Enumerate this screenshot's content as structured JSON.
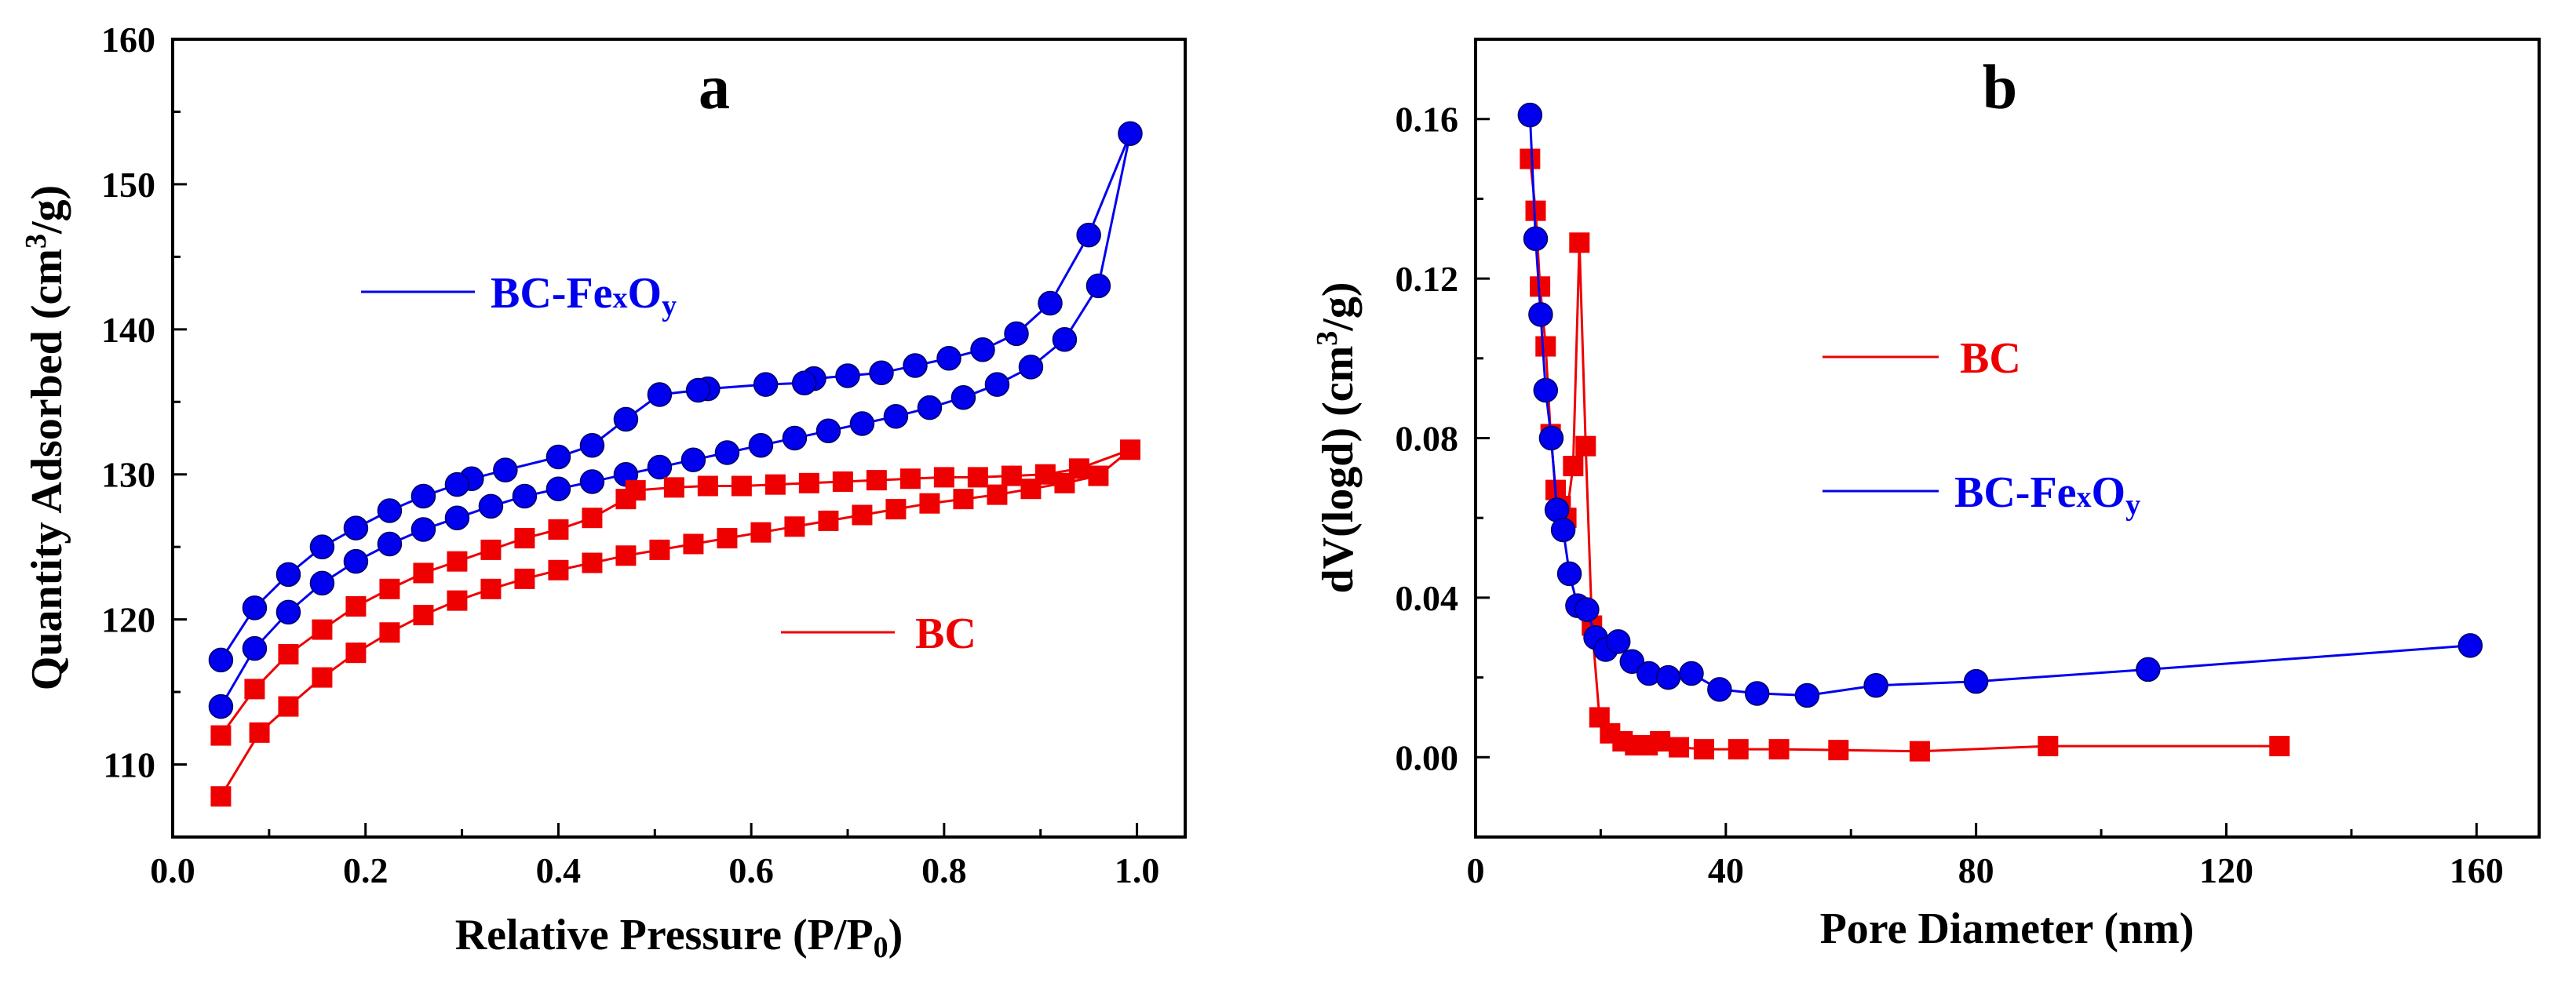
{
  "chart_data": [
    {
      "panel_label": "a",
      "type": "line",
      "title": "",
      "xlabel": "Relative Pressure (P/P",
      "xlabel_sub": "0",
      "xlabel_end": ")",
      "ylabel": "Quantity Adsorbed (cm",
      "ylabel_sup": "3",
      "ylabel_end": "/g)",
      "xlim": [
        0.0,
        1.05
      ],
      "ylim": [
        105,
        160
      ],
      "xticks": [
        0.0,
        0.2,
        0.4,
        0.6,
        0.8,
        1.0
      ],
      "xtick_labels": [
        "0.0",
        "0.2",
        "0.4",
        "0.6",
        "0.8",
        "1.0"
      ],
      "yticks": [
        110,
        120,
        130,
        140,
        150,
        160
      ],
      "ytick_labels": [
        "110",
        "120",
        "130",
        "140",
        "150",
        "160"
      ],
      "series": [
        {
          "name": "BC-FexOy",
          "legend_main": "BC-Fe",
          "legend_sub1": "x",
          "legend_mid": "O",
          "legend_sub2": "y",
          "color": "#0000ee",
          "marker": "circle",
          "x": [
            0.05,
            0.085,
            0.12,
            0.155,
            0.19,
            0.225,
            0.26,
            0.295,
            0.33,
            0.365,
            0.4,
            0.435,
            0.47,
            0.505,
            0.54,
            0.575,
            0.61,
            0.645,
            0.68,
            0.715,
            0.75,
            0.785,
            0.82,
            0.855,
            0.89,
            0.925,
            0.96,
            0.993,
            0.95,
            0.91,
            0.875,
            0.84,
            0.805,
            0.77,
            0.735,
            0.7,
            0.665,
            0.655,
            0.615,
            0.555,
            0.545,
            0.505,
            0.47,
            0.435,
            0.4,
            0.345,
            0.31,
            0.295,
            0.26,
            0.225,
            0.19,
            0.155,
            0.12,
            0.085,
            0.05
          ],
          "y": [
            114.0,
            118.0,
            120.5,
            122.5,
            124.0,
            125.2,
            126.2,
            127.0,
            127.8,
            128.5,
            129.0,
            129.5,
            130.0,
            130.5,
            131.0,
            131.5,
            132.0,
            132.5,
            133.0,
            133.5,
            134.0,
            134.6,
            135.3,
            136.2,
            137.4,
            139.3,
            143.0,
            153.5,
            146.5,
            141.8,
            139.7,
            138.6,
            138.0,
            137.5,
            137.0,
            136.8,
            136.6,
            136.3,
            136.2,
            135.9,
            135.8,
            135.5,
            133.8,
            132.0,
            131.2,
            130.3,
            129.7,
            129.3,
            128.5,
            127.5,
            126.3,
            125.0,
            123.1,
            120.8,
            117.2
          ]
        },
        {
          "name": "BC",
          "legend_main": "BC",
          "color": "#ee0000",
          "marker": "square",
          "x": [
            0.05,
            0.09,
            0.12,
            0.155,
            0.19,
            0.225,
            0.26,
            0.295,
            0.33,
            0.365,
            0.4,
            0.435,
            0.47,
            0.505,
            0.54,
            0.575,
            0.61,
            0.645,
            0.68,
            0.715,
            0.75,
            0.785,
            0.82,
            0.855,
            0.89,
            0.925,
            0.96,
            0.993,
            0.94,
            0.905,
            0.87,
            0.835,
            0.8,
            0.765,
            0.73,
            0.695,
            0.66,
            0.625,
            0.59,
            0.555,
            0.52,
            0.48,
            0.47,
            0.435,
            0.4,
            0.365,
            0.33,
            0.295,
            0.26,
            0.225,
            0.19,
            0.155,
            0.12,
            0.085,
            0.05
          ],
          "y": [
            107.8,
            112.2,
            114.0,
            116.0,
            117.7,
            119.1,
            120.3,
            121.3,
            122.1,
            122.8,
            123.4,
            123.9,
            124.4,
            124.8,
            125.2,
            125.6,
            126.0,
            126.4,
            126.8,
            127.2,
            127.6,
            128.0,
            128.3,
            128.6,
            129.0,
            129.4,
            129.9,
            131.7,
            130.4,
            130.0,
            129.9,
            129.8,
            129.8,
            129.7,
            129.6,
            129.5,
            129.4,
            129.3,
            129.2,
            129.2,
            129.1,
            128.9,
            128.3,
            127.0,
            126.2,
            125.6,
            124.8,
            124.0,
            123.2,
            122.1,
            120.9,
            119.3,
            117.6,
            115.2,
            112.0
          ]
        }
      ]
    },
    {
      "panel_label": "b",
      "type": "line",
      "title": "",
      "xlabel": "Pore Diameter (nm)",
      "ylabel": "dV(logd) (cm",
      "ylabel_sup": "3",
      "ylabel_end": "/g)",
      "xlim": [
        0,
        170
      ],
      "ylim": [
        -0.02,
        0.18
      ],
      "xticks": [
        0,
        40,
        80,
        120,
        160
      ],
      "xtick_labels": [
        "0",
        "40",
        "80",
        "120",
        "160"
      ],
      "yticks": [
        0.0,
        0.04,
        0.08,
        0.12,
        0.16
      ],
      "ytick_labels": [
        "0.00",
        "0.04",
        "0.08",
        "0.12",
        "0.16"
      ],
      "series": [
        {
          "name": "BC",
          "legend_main": "BC",
          "color": "#ee0000",
          "marker": "square",
          "x": [
            8.7,
            9.6,
            10.3,
            11.2,
            12.0,
            12.8,
            13.6,
            14.5,
            15.6,
            16.6,
            17.6,
            18.6,
            19.8,
            21.5,
            23.5,
            25.5,
            27.5,
            29.5,
            32.5,
            36.5,
            42,
            48.5,
            58,
            71,
            91.5,
            128.5
          ],
          "y": [
            0.15,
            0.137,
            0.118,
            0.103,
            0.081,
            0.067,
            0.063,
            0.06,
            0.073,
            0.129,
            0.078,
            0.033,
            0.01,
            0.006,
            0.004,
            0.003,
            0.003,
            0.004,
            0.0025,
            0.002,
            0.002,
            0.002,
            0.0018,
            0.0015,
            0.0028,
            0.0028
          ]
        },
        {
          "name": "BC-FexOy",
          "legend_main": "BC-Fe",
          "legend_sub1": "x",
          "legend_mid": "O",
          "legend_sub2": "y",
          "color": "#0000ee",
          "marker": "circle",
          "x": [
            8.7,
            9.6,
            10.4,
            11.2,
            12.1,
            13.0,
            14.0,
            15.0,
            16.3,
            17.8,
            19.2,
            20.8,
            22.8,
            25.0,
            27.7,
            30.8,
            34.5,
            39.0,
            45.0,
            53.0,
            64.0,
            80.0,
            107.5,
            159.0
          ],
          "y": [
            0.161,
            0.13,
            0.111,
            0.092,
            0.08,
            0.062,
            0.057,
            0.046,
            0.038,
            0.037,
            0.03,
            0.027,
            0.029,
            0.024,
            0.021,
            0.02,
            0.021,
            0.017,
            0.016,
            0.0155,
            0.018,
            0.019,
            0.022,
            0.028
          ]
        }
      ]
    }
  ]
}
